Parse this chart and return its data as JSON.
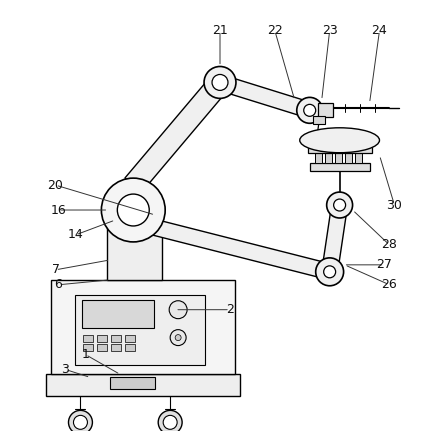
{
  "background_color": "#ffffff",
  "line_color": "#000000",
  "fig_w": 4.43,
  "fig_h": 4.32,
  "dpi": 100
}
